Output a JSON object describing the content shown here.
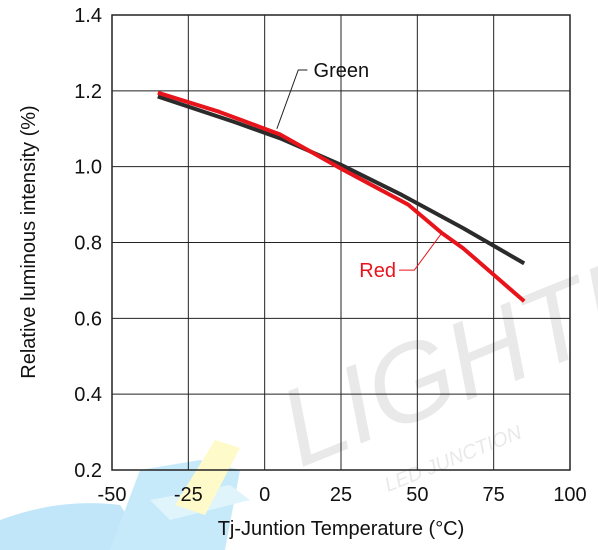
{
  "chart_data": {
    "type": "line",
    "xlabel": "Tj-Juntion Temperature (°C)",
    "ylabel": "Relative luminous intensity (%)",
    "xlim": [
      -50,
      100
    ],
    "ylim": [
      0.2,
      1.4
    ],
    "xticks": [
      -50,
      -25,
      0,
      25,
      50,
      75,
      100
    ],
    "yticks": [
      0.2,
      0.4,
      0.6,
      0.8,
      1.0,
      1.2,
      1.4
    ],
    "xtick_labels": [
      "-50",
      "-25",
      "0",
      "25",
      "50",
      "75",
      "100"
    ],
    "ytick_labels": [
      "0.2",
      "0.4",
      "0.6",
      "0.8",
      "1.0",
      "1.2",
      "1.4"
    ],
    "grid": true,
    "series": [
      {
        "name": "Green",
        "color": "#2b2b2b",
        "x": [
          -35,
          -10,
          5,
          25,
          45,
          65,
          85
        ],
        "y": [
          1.185,
          1.118,
          1.075,
          1.005,
          0.925,
          0.838,
          0.745
        ]
      },
      {
        "name": "Red",
        "color": "#e8141c",
        "x": [
          -35,
          -15,
          5,
          25,
          47,
          58,
          65,
          75,
          85
        ],
        "y": [
          1.195,
          1.145,
          1.085,
          0.995,
          0.9,
          0.825,
          0.785,
          0.715,
          0.645
        ]
      }
    ]
  },
  "watermark": {
    "text": "LIGHTING",
    "subtext": "LED JUNCTION"
  }
}
